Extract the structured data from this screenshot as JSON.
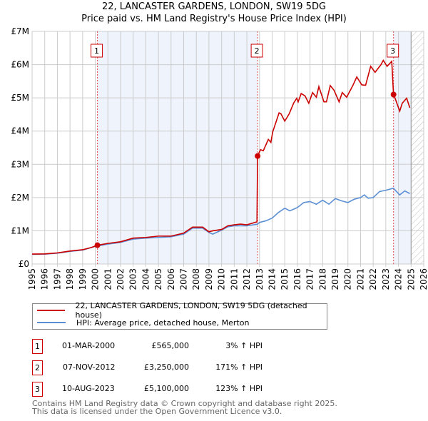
{
  "chart_data": {
    "type": "line",
    "title": "22, LANCASTER GARDENS, LONDON, SW19 5DG",
    "subtitle": "Price paid vs. HM Land Registry's House Price Index (HPI)",
    "xlim": [
      1995,
      2026
    ],
    "ylim": [
      0,
      7000000
    ],
    "x_ticks": [
      "1995",
      "1996",
      "1997",
      "1998",
      "1999",
      "2000",
      "2001",
      "2002",
      "2003",
      "2004",
      "2005",
      "2006",
      "2007",
      "2008",
      "2009",
      "2010",
      "2011",
      "2012",
      "2013",
      "2014",
      "2015",
      "2016",
      "2017",
      "2018",
      "2019",
      "2020",
      "2021",
      "2022",
      "2023",
      "2024",
      "2025",
      "2026"
    ],
    "y_ticks": [
      {
        "v": 0,
        "label": "£0"
      },
      {
        "v": 1000000,
        "label": "£1M"
      },
      {
        "v": 2000000,
        "label": "£2M"
      },
      {
        "v": 3000000,
        "label": "£3M"
      },
      {
        "v": 4000000,
        "label": "£4M"
      },
      {
        "v": 5000000,
        "label": "£5M"
      },
      {
        "v": 6000000,
        "label": "£6M"
      },
      {
        "v": 7000000,
        "label": "£7M"
      }
    ],
    "grid": true,
    "ownership_shading": [
      [
        2000.17,
        2012.85
      ],
      [
        2023.61,
        2025.0
      ]
    ],
    "forecast_hatch_from": 2025.0,
    "colors": {
      "property": "#cc0000",
      "hpi": "#5b8fd4",
      "shade": "#eef3fc"
    },
    "series": [
      {
        "name": "22, LANCASTER GARDENS, LONDON, SW19 5DG (detached house)",
        "color": "#cc0000",
        "x": [
          1995,
          1996,
          1997,
          1998,
          1999,
          1999.7,
          2000.17,
          2001,
          2002,
          2003,
          2004,
          2005,
          2006,
          2007,
          2007.7,
          2008.5,
          2009,
          2009.3,
          2010,
          2010.5,
          2011,
          2011.5,
          2012,
          2012.8,
          2012.85,
          2013.08,
          2013.3,
          2013.7,
          2013.9,
          2014.05,
          2014.55,
          2014.7,
          2015.0,
          2015.35,
          2015.7,
          2015.95,
          2016.06,
          2016.3,
          2016.6,
          2016.9,
          2017.2,
          2017.5,
          2017.7,
          2018.1,
          2018.3,
          2018.6,
          2018.9,
          2019.3,
          2019.55,
          2019.9,
          2020.4,
          2020.7,
          2021.1,
          2021.4,
          2021.8,
          2022.15,
          2022.6,
          2022.8,
          2023.1,
          2023.47,
          2023.61,
          2023.77,
          2024.1,
          2024.3,
          2024.65,
          2024.9
        ],
        "y": [
          300000,
          305000,
          335000,
          390000,
          430000,
          500000,
          565000,
          620000,
          670000,
          780000,
          800000,
          840000,
          840000,
          930000,
          1110000,
          1110000,
          970000,
          1000000,
          1040000,
          1150000,
          1180000,
          1200000,
          1180000,
          1270000,
          3250000,
          3440000,
          3410000,
          3750000,
          3660000,
          3980000,
          4550000,
          4520000,
          4300000,
          4520000,
          4840000,
          4990000,
          4880000,
          5130000,
          5060000,
          4840000,
          5160000,
          5020000,
          5340000,
          4880000,
          4880000,
          5370000,
          5230000,
          4880000,
          5160000,
          5020000,
          5380000,
          5630000,
          5390000,
          5380000,
          5950000,
          5770000,
          5990000,
          6130000,
          5950000,
          6100000,
          5100000,
          4950000,
          4600000,
          4840000,
          4990000,
          4700000
        ]
      },
      {
        "name": "HPI: Average price, detached house, Merton",
        "color": "#5b8fd4",
        "x": [
          1995,
          1996,
          1997,
          1998,
          1999,
          2000,
          2001,
          2002,
          2003,
          2004,
          2005,
          2006,
          2007,
          2007.7,
          2008.5,
          2009,
          2009.3,
          2010,
          2010.5,
          2011,
          2012,
          2012.85,
          2013,
          2013.5,
          2014,
          2014.5,
          2015,
          2015.4,
          2016,
          2016.5,
          2017,
          2017.5,
          2018,
          2018.5,
          2019,
          2019.5,
          2020,
          2020.5,
          2021,
          2021.3,
          2021.6,
          2022,
          2022.5,
          2023,
          2023.6,
          2024.1,
          2024.5,
          2024.9
        ],
        "y": [
          290000,
          295000,
          325000,
          380000,
          420000,
          530000,
          600000,
          650000,
          750000,
          780000,
          800000,
          820000,
          900000,
          1080000,
          1080000,
          950000,
          900000,
          1020000,
          1120000,
          1150000,
          1150000,
          1200000,
          1250000,
          1300000,
          1380000,
          1550000,
          1680000,
          1600000,
          1700000,
          1850000,
          1880000,
          1800000,
          1920000,
          1800000,
          1970000,
          1900000,
          1850000,
          1950000,
          2000000,
          2080000,
          1980000,
          2000000,
          2180000,
          2220000,
          2280000,
          2080000,
          2200000,
          2120000
        ]
      }
    ],
    "annotations": [
      {
        "label": "1",
        "x": 2000.17,
        "y": 565000
      },
      {
        "label": "2",
        "x": 2012.85,
        "y": 3250000
      },
      {
        "label": "3",
        "x": 2023.61,
        "y": 5100000
      }
    ]
  },
  "legend": {
    "property": "22, LANCASTER GARDENS, LONDON, SW19 5DG (detached house)",
    "hpi": "HPI: Average price, detached house, Merton"
  },
  "sales": [
    {
      "num": "1",
      "date": "01-MAR-2000",
      "price": "£565,000",
      "hpi": "3% ↑ HPI"
    },
    {
      "num": "2",
      "date": "07-NOV-2012",
      "price": "£3,250,000",
      "hpi": "171% ↑ HPI"
    },
    {
      "num": "3",
      "date": "10-AUG-2023",
      "price": "£5,100,000",
      "hpi": "123% ↑ HPI"
    }
  ],
  "footer": {
    "line1": "Contains HM Land Registry data © Crown copyright and database right 2025.",
    "line2": "This data is licensed under the Open Government Licence v3.0."
  }
}
